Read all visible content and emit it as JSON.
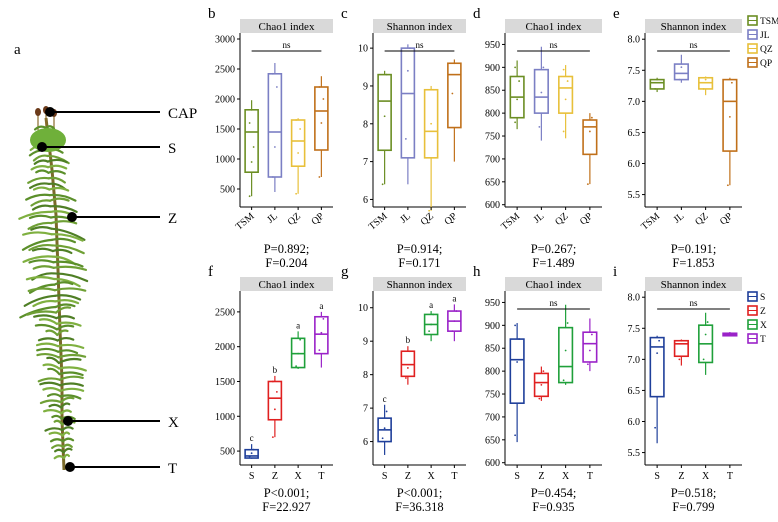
{
  "figure": {
    "panel_a": {
      "letter": "a",
      "labels": [
        "CAP",
        "S",
        "Z",
        "X",
        "T"
      ]
    }
  },
  "colors": {
    "TSM": "#6b8e23",
    "JL": "#7b7fc4",
    "QZ": "#e8c03a",
    "QP": "#c0701a",
    "S": "#1f3f9a",
    "Z": "#e02020",
    "X": "#1fa03a",
    "T": "#9a22c8",
    "strip": "#d9d9d9"
  },
  "legends": [
    {
      "items": [
        "TSM",
        "JL",
        "QZ",
        "QP"
      ]
    },
    {
      "items": [
        "S",
        "Z",
        "X",
        "T"
      ]
    }
  ],
  "chart_data": [
    {
      "panel": "b",
      "type": "box",
      "title": "Chao1 index",
      "categories": [
        "TSM",
        "JL",
        "QZ",
        "QP"
      ],
      "ylim": [
        200,
        3100
      ],
      "yticks": [
        500,
        1000,
        1500,
        2000,
        2500,
        3000
      ],
      "annotation": "ns",
      "stats": [
        "P=0.892;",
        "F=0.204"
      ],
      "boxes": [
        {
          "min": 380,
          "q1": 780,
          "median": 1450,
          "q3": 1820,
          "max": 1980,
          "points": [
            380,
            950,
            1200,
            1600,
            1820
          ]
        },
        {
          "min": 450,
          "q1": 700,
          "median": 1450,
          "q3": 2420,
          "max": 2600,
          "points": [
            700,
            1200,
            2200,
            2420
          ]
        },
        {
          "min": 420,
          "q1": 880,
          "median": 1300,
          "q3": 1650,
          "max": 1680,
          "points": [
            420,
            1100,
            1500,
            1650
          ]
        },
        {
          "min": 700,
          "q1": 1150,
          "median": 1800,
          "q3": 2200,
          "max": 2380,
          "points": [
            700,
            1600,
            2000,
            2200
          ]
        }
      ]
    },
    {
      "panel": "c",
      "type": "box",
      "title": "Shannon index",
      "categories": [
        "TSM",
        "JL",
        "QZ",
        "QP"
      ],
      "ylim": [
        5.8,
        10.4
      ],
      "yticks": [
        6,
        7,
        8,
        9,
        10
      ],
      "annotation": "ns",
      "stats": [
        "P=0.914;",
        "F=0.171"
      ],
      "boxes": [
        {
          "min": 6.4,
          "q1": 7.3,
          "median": 8.6,
          "q3": 9.3,
          "max": 9.4,
          "points": [
            6.4,
            8.2,
            9.3
          ]
        },
        {
          "min": 6.4,
          "q1": 7.1,
          "median": 8.8,
          "q3": 10.0,
          "max": 10.1,
          "points": [
            7.6,
            9.4,
            10.0
          ]
        },
        {
          "min": 5.7,
          "q1": 7.1,
          "median": 7.8,
          "q3": 8.9,
          "max": 9.0,
          "points": [
            5.7,
            8.0,
            8.9
          ]
        },
        {
          "min": 7.0,
          "q1": 7.9,
          "median": 9.3,
          "q3": 9.6,
          "max": 9.7,
          "points": [
            8.8,
            9.6
          ]
        }
      ]
    },
    {
      "panel": "d",
      "type": "box",
      "title": "Chao1 index",
      "categories": [
        "TSM",
        "JL",
        "QZ",
        "QP"
      ],
      "ylim": [
        595,
        975
      ],
      "yticks": [
        600,
        650,
        700,
        750,
        800,
        850,
        900,
        950
      ],
      "annotation": "ns",
      "stats": [
        "P=0.267;",
        "F=1.489"
      ],
      "boxes": [
        {
          "min": 765,
          "q1": 790,
          "median": 835,
          "q3": 880,
          "max": 915,
          "points": [
            780,
            830,
            870,
            900
          ]
        },
        {
          "min": 740,
          "q1": 800,
          "median": 835,
          "q3": 895,
          "max": 945,
          "points": [
            770,
            845,
            900
          ]
        },
        {
          "min": 745,
          "q1": 800,
          "median": 855,
          "q3": 880,
          "max": 905,
          "points": [
            760,
            830,
            870,
            895
          ]
        },
        {
          "min": 645,
          "q1": 710,
          "median": 770,
          "q3": 785,
          "max": 800,
          "points": [
            645,
            760,
            790
          ]
        }
      ]
    },
    {
      "panel": "e",
      "type": "box",
      "title": "Shannon index",
      "categories": [
        "TSM",
        "JL",
        "QZ",
        "QP"
      ],
      "ylim": [
        5.3,
        8.1
      ],
      "yticks": [
        5.5,
        6.0,
        6.5,
        7.0,
        7.5,
        8.0
      ],
      "annotation": "ns",
      "stats": [
        "P=0.191;",
        "F=1.853"
      ],
      "boxes": [
        {
          "min": 7.15,
          "q1": 7.2,
          "median": 7.3,
          "q3": 7.35,
          "max": 7.38,
          "points": [
            7.2,
            7.35
          ]
        },
        {
          "min": 7.3,
          "q1": 7.35,
          "median": 7.45,
          "q3": 7.6,
          "max": 7.75,
          "points": [
            7.35,
            7.55
          ]
        },
        {
          "min": 7.1,
          "q1": 7.2,
          "median": 7.3,
          "q3": 7.38,
          "max": 7.4,
          "points": [
            7.2,
            7.35
          ]
        },
        {
          "min": 5.65,
          "q1": 6.2,
          "median": 7.0,
          "q3": 7.35,
          "max": 7.38,
          "points": [
            5.65,
            6.75,
            7.3
          ]
        }
      ]
    },
    {
      "panel": "f",
      "type": "box",
      "title": "Chao1 index",
      "categories": [
        "S",
        "Z",
        "X",
        "T"
      ],
      "ylim": [
        300,
        2800
      ],
      "yticks": [
        500,
        1000,
        1500,
        2000,
        2500
      ],
      "letters": [
        "c",
        "b",
        "a",
        "a"
      ],
      "stats": [
        "P<0.001;",
        "F=22.927"
      ],
      "boxes": [
        {
          "min": 390,
          "q1": 400,
          "median": 430,
          "q3": 520,
          "max": 600,
          "points": [
            420,
            470,
            520
          ]
        },
        {
          "min": 700,
          "q1": 950,
          "median": 1260,
          "q3": 1500,
          "max": 1580,
          "points": [
            700,
            1100,
            1350,
            1500
          ]
        },
        {
          "min": 1680,
          "q1": 1700,
          "median": 1900,
          "q3": 2120,
          "max": 2220,
          "points": [
            1720,
            1900,
            2100
          ]
        },
        {
          "min": 1700,
          "q1": 1900,
          "median": 2180,
          "q3": 2430,
          "max": 2500,
          "points": [
            1950,
            2200,
            2400
          ]
        }
      ]
    },
    {
      "panel": "g",
      "type": "box",
      "title": "Shannon index",
      "categories": [
        "S",
        "Z",
        "X",
        "T"
      ],
      "ylim": [
        5.3,
        10.5
      ],
      "yticks": [
        6,
        7,
        8,
        9,
        10
      ],
      "letters": [
        "c",
        "b",
        "a",
        "a"
      ],
      "stats": [
        "P<0.001;",
        "F=36.318"
      ],
      "boxes": [
        {
          "min": 5.6,
          "q1": 6.0,
          "median": 6.35,
          "q3": 6.7,
          "max": 7.1,
          "points": [
            6.1,
            6.4,
            6.9
          ]
        },
        {
          "min": 7.7,
          "q1": 7.95,
          "median": 8.3,
          "q3": 8.7,
          "max": 8.85,
          "points": [
            7.9,
            8.2,
            8.7
          ]
        },
        {
          "min": 9.0,
          "q1": 9.2,
          "median": 9.5,
          "q3": 9.8,
          "max": 9.9,
          "points": [
            9.3,
            9.5,
            9.8
          ]
        },
        {
          "min": 9.0,
          "q1": 9.3,
          "median": 9.6,
          "q3": 9.9,
          "max": 10.1,
          "points": [
            9.3,
            9.6,
            9.9
          ]
        }
      ]
    },
    {
      "panel": "h",
      "type": "box",
      "title": "Chao1 index",
      "categories": [
        "S",
        "Z",
        "X",
        "T"
      ],
      "ylim": [
        595,
        975
      ],
      "yticks": [
        600,
        650,
        700,
        750,
        800,
        850,
        900,
        950
      ],
      "annotation": "ns",
      "stats": [
        "P=0.454;",
        "F=0.935"
      ],
      "boxes": [
        {
          "min": 645,
          "q1": 730,
          "median": 825,
          "q3": 870,
          "max": 905,
          "points": [
            660,
            820,
            870,
            900
          ]
        },
        {
          "min": 735,
          "q1": 745,
          "median": 775,
          "q3": 795,
          "max": 810,
          "points": [
            740,
            770,
            800
          ]
        },
        {
          "min": 770,
          "q1": 775,
          "median": 810,
          "q3": 895,
          "max": 945,
          "points": [
            780,
            845,
            905
          ]
        },
        {
          "min": 800,
          "q1": 820,
          "median": 860,
          "q3": 885,
          "max": 915,
          "points": [
            815,
            845,
            880
          ]
        }
      ]
    },
    {
      "panel": "i",
      "type": "box",
      "title": "Shannon index",
      "categories": [
        "S",
        "Z",
        "X",
        "T"
      ],
      "ylim": [
        5.3,
        8.1
      ],
      "yticks": [
        5.5,
        6.0,
        6.5,
        7.0,
        7.5,
        8.0
      ],
      "annotation": "ns",
      "stats": [
        "P=0.518;",
        "F=0.799"
      ],
      "boxes": [
        {
          "min": 5.65,
          "q1": 6.4,
          "median": 7.2,
          "q3": 7.35,
          "max": 7.38,
          "points": [
            5.9,
            7.1,
            7.3
          ]
        },
        {
          "min": 6.9,
          "q1": 7.05,
          "median": 7.25,
          "q3": 7.3,
          "max": 7.32,
          "points": [
            7.0,
            7.3
          ]
        },
        {
          "min": 6.75,
          "q1": 6.95,
          "median": 7.25,
          "q3": 7.55,
          "max": 7.75,
          "points": [
            7.0,
            7.4,
            7.6
          ]
        },
        {
          "min": 7.37,
          "q1": 7.38,
          "median": 7.4,
          "q3": 7.42,
          "max": 7.44,
          "points": [
            7.4
          ]
        }
      ]
    }
  ]
}
